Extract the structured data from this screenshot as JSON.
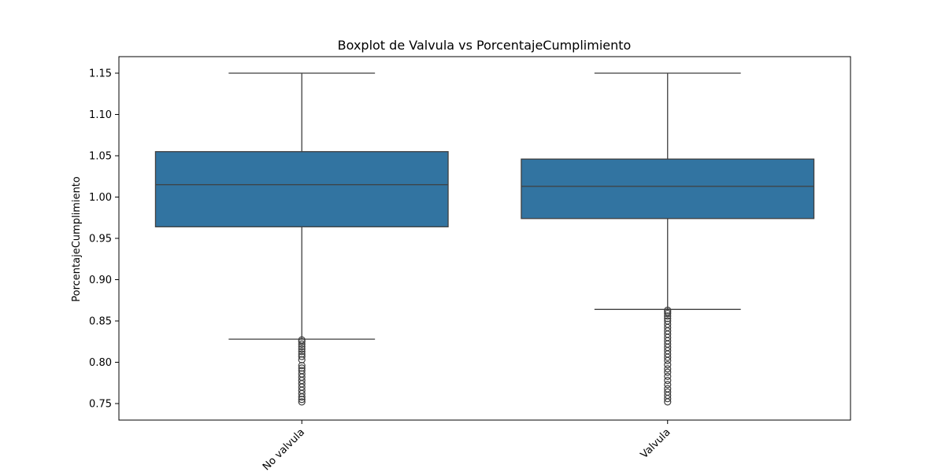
{
  "chart_data": {
    "type": "box",
    "title": "Boxplot de Valvula vs PorcentajeCumplimiento",
    "xlabel": "",
    "ylabel": "PorcentajeCumplimiento",
    "ylim": [
      0.73,
      1.17
    ],
    "y_ticks": [
      0.75,
      0.8,
      0.85,
      0.9,
      0.95,
      1.0,
      1.05,
      1.1,
      1.15
    ],
    "y_tick_labels": [
      "0.75",
      "0.80",
      "0.85",
      "0.90",
      "0.95",
      "1.00",
      "1.05",
      "1.10",
      "1.15"
    ],
    "categories": [
      "No valvula",
      "Valvula"
    ],
    "box_color": "#3274a1",
    "line_color": "#3f3f3f",
    "grid": false,
    "boxes": [
      {
        "category": "No valvula",
        "whisker_low": 0.828,
        "q1": 0.964,
        "median": 1.015,
        "q3": 1.055,
        "whisker_high": 1.15,
        "outliers": [
          0.752,
          0.755,
          0.758,
          0.762,
          0.766,
          0.77,
          0.774,
          0.778,
          0.782,
          0.786,
          0.79,
          0.793,
          0.796,
          0.803,
          0.807,
          0.81,
          0.813,
          0.816,
          0.819,
          0.822,
          0.825,
          0.827
        ]
      },
      {
        "category": "Valvula",
        "whisker_low": 0.864,
        "q1": 0.974,
        "median": 1.013,
        "q3": 1.046,
        "whisker_high": 1.15,
        "outliers": [
          0.752,
          0.756,
          0.76,
          0.764,
          0.768,
          0.773,
          0.778,
          0.783,
          0.788,
          0.792,
          0.797,
          0.802,
          0.806,
          0.81,
          0.814,
          0.818,
          0.822,
          0.826,
          0.83,
          0.834,
          0.838,
          0.842,
          0.846,
          0.85,
          0.853,
          0.856,
          0.859,
          0.861,
          0.863
        ]
      }
    ]
  }
}
